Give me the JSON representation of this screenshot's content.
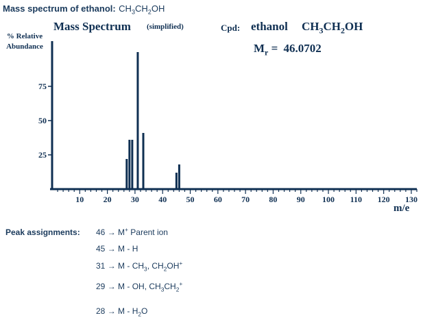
{
  "header": {
    "title": "Mass spectrum of ethanol:",
    "formula_parts": [
      "CH",
      "3",
      "CH",
      "2",
      "OH"
    ]
  },
  "chart_data": {
    "type": "bar",
    "title": "Mass Spectrum",
    "subtitle": "(simplified)",
    "compound_label": "Cpd:",
    "compound_name": "ethanol",
    "compound_formula_parts": [
      "CH",
      "3",
      "CH",
      "2",
      "OH"
    ],
    "mr_label_main": "M",
    "mr_label_sub": "r",
    "mr_equals": "=",
    "mr_value": "46.0702",
    "ylabel_line1": "% Relative",
    "ylabel_line2": "Abundance",
    "xlabel": "m/e",
    "xlim": [
      0,
      132
    ],
    "ylim": [
      0,
      100
    ],
    "x_ticks": [
      10,
      20,
      30,
      40,
      50,
      60,
      70,
      80,
      90,
      100,
      110,
      120,
      130
    ],
    "y_ticks": [
      25,
      50,
      75
    ],
    "grid": false,
    "peaks": [
      {
        "mz": 27,
        "value": 22
      },
      {
        "mz": 28,
        "value": 36
      },
      {
        "mz": 29,
        "value": 36
      },
      {
        "mz": 31,
        "value": 100
      },
      {
        "mz": 33,
        "value": 41
      },
      {
        "mz": 45,
        "value": 12
      },
      {
        "mz": 46,
        "value": 18
      }
    ],
    "color": "#0f2f52"
  },
  "assignments": {
    "label": "Peak assignments:",
    "arrow": "→",
    "rows": [
      {
        "mz": "46",
        "parts": [
          {
            "t": "M"
          },
          {
            "t": "+",
            "sup": true
          },
          {
            "t": " Parent ion"
          }
        ]
      },
      {
        "mz": "45",
        "parts": [
          {
            "t": "M - H"
          }
        ]
      },
      {
        "mz": "31",
        "parts": [
          {
            "t": "M - CH"
          },
          {
            "t": "3",
            "sub": true
          },
          {
            "t": ", CH"
          },
          {
            "t": "2",
            "sub": true
          },
          {
            "t": "OH"
          },
          {
            "t": "+",
            "sup": true
          }
        ]
      },
      {
        "mz": "29",
        "parts": [
          {
            "t": "M - OH, CH"
          },
          {
            "t": "3",
            "sub": true
          },
          {
            "t": "CH"
          },
          {
            "t": "2",
            "sub": true
          },
          {
            "t": "+",
            "sup": true
          }
        ]
      },
      {
        "mz": "28",
        "parts": [
          {
            "t": "M - H"
          },
          {
            "t": "2",
            "sub": true
          },
          {
            "t": "O"
          }
        ]
      }
    ]
  }
}
